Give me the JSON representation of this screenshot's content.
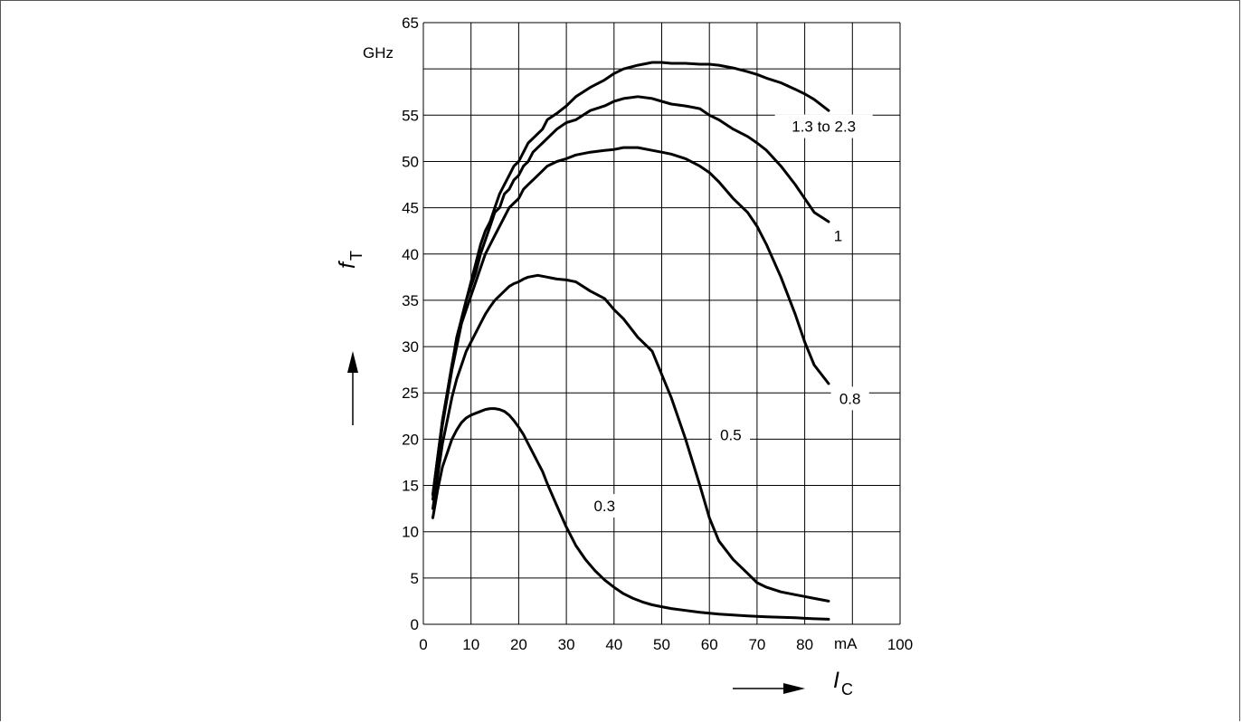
{
  "chart_data": {
    "type": "line",
    "title": "",
    "xlabel": {
      "symbol": "I",
      "subscript": "C"
    },
    "ylabel": {
      "symbol": "f",
      "subscript": "T"
    },
    "x_unit": "mA",
    "y_unit": "GHz",
    "xlim": [
      0,
      100
    ],
    "ylim": [
      0,
      65
    ],
    "x_ticks": [
      "0",
      "10",
      "20",
      "30",
      "40",
      "50",
      "60",
      "70",
      "80",
      "100"
    ],
    "y_ticks": [
      "0",
      "5",
      "10",
      "15",
      "20",
      "25",
      "30",
      "35",
      "40",
      "45",
      "50",
      "55",
      "65"
    ],
    "grid": true,
    "colors": {
      "line": "#000000",
      "grid": "#000000",
      "frame": "#555555"
    },
    "series": [
      {
        "name": "1.3 to 2.3",
        "x": [
          2,
          3,
          4,
          5,
          6,
          7,
          8,
          9,
          10,
          11,
          12,
          13,
          14,
          15,
          16,
          17,
          18,
          19,
          20,
          21,
          22,
          23,
          24,
          25,
          26,
          28,
          30,
          32,
          35,
          38,
          40,
          42,
          45,
          48,
          50,
          52,
          55,
          58,
          60,
          62,
          65,
          68,
          70,
          72,
          75,
          78,
          80,
          82,
          85
        ],
        "y": [
          14,
          18,
          22,
          25,
          28,
          30.5,
          33,
          35,
          37,
          39,
          41,
          42.5,
          43.5,
          45,
          46.5,
          47.5,
          48.5,
          49.5,
          50,
          51,
          52,
          52.5,
          53,
          53.5,
          54.5,
          55.2,
          56,
          57,
          58,
          58.8,
          59.5,
          60,
          60.4,
          60.7,
          60.7,
          60.6,
          60.6,
          60.5,
          60.5,
          60.4,
          60.1,
          59.7,
          59.4,
          59.0,
          58.5,
          57.8,
          57.3,
          56.7,
          55.5
        ]
      },
      {
        "name": "1",
        "x": [
          2,
          3,
          4,
          5,
          6,
          7,
          8,
          9,
          10,
          11,
          12,
          13,
          14,
          15,
          16,
          17,
          18,
          19,
          20,
          21,
          22,
          23,
          24,
          25,
          26,
          28,
          30,
          32,
          35,
          38,
          40,
          42,
          45,
          48,
          50,
          52,
          55,
          58,
          60,
          62,
          65,
          68,
          70,
          72,
          75,
          78,
          80,
          82,
          85
        ],
        "y": [
          14,
          18,
          22,
          25,
          28,
          31,
          33,
          35,
          36.5,
          38,
          40,
          41.5,
          43,
          44.5,
          45,
          46.5,
          47,
          48,
          48.5,
          49.5,
          50,
          51,
          51.5,
          52,
          52.5,
          53.5,
          54.2,
          54.5,
          55.5,
          56,
          56.5,
          56.8,
          57,
          56.8,
          56.5,
          56.2,
          56,
          55.7,
          55,
          54.5,
          53.5,
          52.7,
          52,
          51.2,
          49.5,
          47.5,
          46,
          44.5,
          43.5
        ]
      },
      {
        "name": "0.8",
        "x": [
          2,
          3,
          4,
          5,
          6,
          7,
          8,
          9,
          10,
          11,
          12,
          13,
          14,
          15,
          16,
          17,
          18,
          19,
          20,
          21,
          22,
          23,
          24,
          25,
          26,
          28,
          30,
          32,
          35,
          38,
          40,
          42,
          45,
          48,
          50,
          52,
          55,
          58,
          60,
          62,
          65,
          68,
          70,
          72,
          75,
          78,
          80,
          82,
          85
        ],
        "y": [
          13.5,
          17.5,
          21.5,
          24.5,
          27.5,
          30,
          32.5,
          34,
          35.5,
          37,
          38.5,
          40,
          41,
          42,
          43,
          44,
          45,
          45.5,
          46,
          47,
          47.5,
          48,
          48.5,
          49,
          49.5,
          50,
          50.3,
          50.7,
          51,
          51.2,
          51.3,
          51.5,
          51.5,
          51.2,
          51,
          50.8,
          50.3,
          49.5,
          48.8,
          47.8,
          46,
          44.5,
          43,
          41,
          37.5,
          33.5,
          30.5,
          28,
          26
        ]
      },
      {
        "name": "0.5",
        "x": [
          2,
          3,
          4,
          5,
          6,
          7,
          8,
          9,
          10,
          11,
          12,
          13,
          14,
          15,
          16,
          17,
          18,
          19,
          20,
          21,
          22,
          23,
          24,
          25,
          26,
          27,
          28,
          30,
          32,
          35,
          38,
          40,
          42,
          45,
          48,
          50,
          52,
          55,
          58,
          60,
          62,
          65,
          68,
          70,
          72,
          75,
          78,
          80,
          82,
          85
        ],
        "y": [
          12.5,
          16,
          19.5,
          22,
          24.5,
          26.5,
          28,
          29.5,
          30.5,
          31.5,
          32.5,
          33.5,
          34.3,
          35,
          35.5,
          36,
          36.5,
          36.8,
          37,
          37.3,
          37.5,
          37.6,
          37.7,
          37.6,
          37.5,
          37.4,
          37.3,
          37.2,
          37,
          36,
          35.2,
          34,
          33,
          31,
          29.5,
          27,
          24.5,
          20,
          15,
          11.5,
          9,
          7,
          5.5,
          4.5,
          4,
          3.5,
          3.2,
          3,
          2.8,
          2.5
        ]
      },
      {
        "name": "0.3",
        "x": [
          2,
          3,
          4,
          5,
          6,
          7,
          8,
          9,
          10,
          11,
          12,
          13,
          14,
          15,
          16,
          17,
          18,
          19,
          20,
          21,
          22,
          23,
          24,
          25,
          26,
          27,
          28,
          30,
          32,
          34,
          36,
          38,
          40,
          42,
          44,
          46,
          48,
          50,
          52,
          55,
          58,
          60,
          62,
          65,
          68,
          70,
          72,
          75,
          78,
          80,
          82,
          85
        ],
        "y": [
          11.5,
          14.5,
          17,
          18.5,
          20,
          21,
          21.8,
          22.3,
          22.6,
          22.8,
          23,
          23.2,
          23.3,
          23.3,
          23.2,
          23,
          22.6,
          22,
          21.3,
          20.5,
          19.5,
          18.5,
          17.5,
          16.5,
          15.2,
          14,
          12.8,
          10.5,
          8.5,
          7,
          5.8,
          4.8,
          4,
          3.3,
          2.8,
          2.4,
          2.1,
          1.9,
          1.7,
          1.5,
          1.3,
          1.2,
          1.1,
          1.0,
          0.9,
          0.85,
          0.8,
          0.75,
          0.7,
          0.65,
          0.6,
          0.55
        ]
      }
    ],
    "curve_labels": [
      {
        "text": "1.3 to 2.3",
        "x": 84,
        "y": 53.8
      },
      {
        "text": "1",
        "x": 87,
        "y": 42
      },
      {
        "text": "0.8",
        "x": 89.5,
        "y": 24.4
      },
      {
        "text": "0.5",
        "x": 64.5,
        "y": 20.5
      },
      {
        "text": "0.3",
        "x": 38,
        "y": 12.8
      }
    ]
  }
}
